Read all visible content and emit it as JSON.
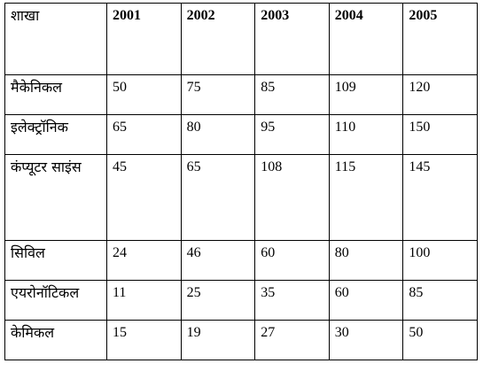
{
  "table": {
    "header": {
      "branch_label": "शाखा",
      "years": [
        "2001",
        "2002",
        "2003",
        "2004",
        "2005"
      ]
    },
    "rows": [
      {
        "branch": "मैकेनिकल",
        "values": [
          "50",
          "75",
          "85",
          "109",
          "120"
        ]
      },
      {
        "branch": "इलेक्ट्रॉनिक",
        "values": [
          "65",
          "80",
          "95",
          "110",
          "150"
        ]
      },
      {
        "branch": "कंप्यूटर साइंस",
        "values": [
          "45",
          "65",
          "108",
          "115",
          "145"
        ]
      },
      {
        "branch": "सिविल",
        "values": [
          "24",
          "46",
          "60",
          "80",
          "100"
        ]
      },
      {
        "branch": "एयरोनॉटिकल",
        "values": [
          "11",
          "25",
          "35",
          "60",
          "85"
        ]
      },
      {
        "branch": "केमिकल",
        "values": [
          "15",
          "19",
          "27",
          "30",
          "50"
        ]
      }
    ]
  }
}
